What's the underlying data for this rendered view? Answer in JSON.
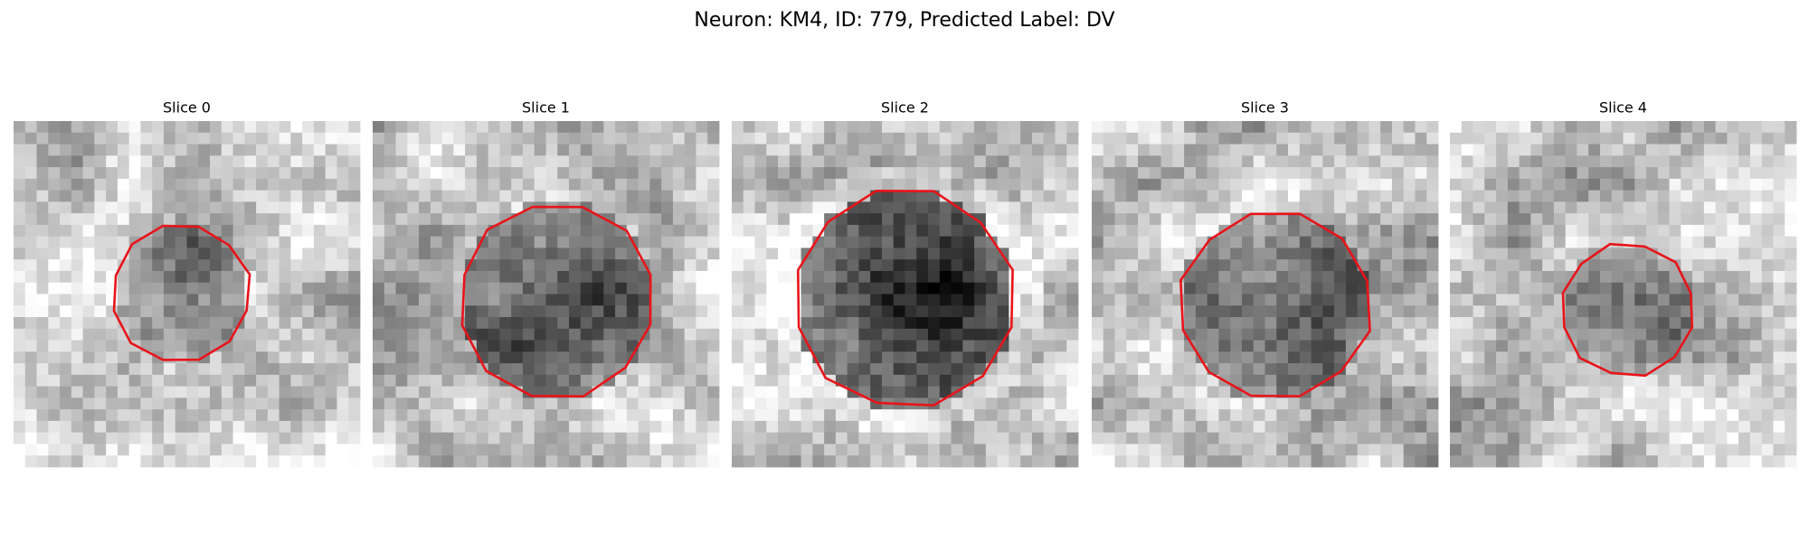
{
  "title": "Neuron: KM4, ID: 779, Predicted Label: DV",
  "panels": [
    {
      "title": "Slice 0"
    },
    {
      "title": "Slice 1"
    },
    {
      "title": "Slice 2"
    },
    {
      "title": "Slice 3"
    },
    {
      "title": "Slice 4"
    }
  ]
}
